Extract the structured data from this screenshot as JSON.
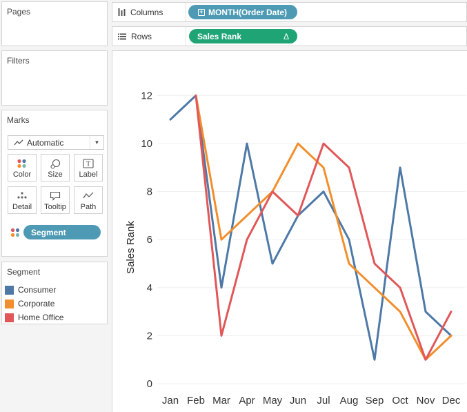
{
  "panels": {
    "pages": "Pages",
    "filters": "Filters",
    "marks": "Marks",
    "legend": "Segment"
  },
  "marks": {
    "type_label": "Automatic",
    "buttons": [
      "Color",
      "Size",
      "Label",
      "Detail",
      "Tooltip",
      "Path"
    ],
    "pill": "Segment"
  },
  "legend": {
    "items": [
      {
        "label": "Consumer",
        "color": "#4e79a7"
      },
      {
        "label": "Corporate",
        "color": "#f28e2b"
      },
      {
        "label": "Home Office",
        "color": "#e15759"
      }
    ]
  },
  "shelves": {
    "columns_label": "Columns",
    "columns_pill": "MONTH(Order Date)",
    "rows_label": "Rows",
    "rows_pill": "Sales Rank",
    "rows_pill_symbol": "Δ"
  },
  "chart_data": {
    "type": "line",
    "categories": [
      "Jan",
      "Feb",
      "Mar",
      "Apr",
      "May",
      "Jun",
      "Jul",
      "Aug",
      "Sep",
      "Oct",
      "Nov",
      "Dec"
    ],
    "ylabel": "Sales Rank",
    "ylim": [
      0,
      12.5
    ],
    "yticks": [
      0,
      2,
      4,
      6,
      8,
      10,
      12
    ],
    "grid": true,
    "series": [
      {
        "name": "Consumer",
        "color": "#4e79a7",
        "values": [
          11,
          12,
          4,
          10,
          5,
          7,
          8,
          6,
          1,
          9,
          3,
          2
        ]
      },
      {
        "name": "Corporate",
        "color": "#f28e2b",
        "values": [
          null,
          12,
          6,
          7,
          8,
          10,
          9,
          5,
          4,
          3,
          1,
          2
        ]
      },
      {
        "name": "Home Office",
        "color": "#e15759",
        "values": [
          null,
          12,
          2,
          6,
          8,
          7,
          10,
          9,
          5,
          4,
          1,
          3
        ]
      }
    ]
  }
}
